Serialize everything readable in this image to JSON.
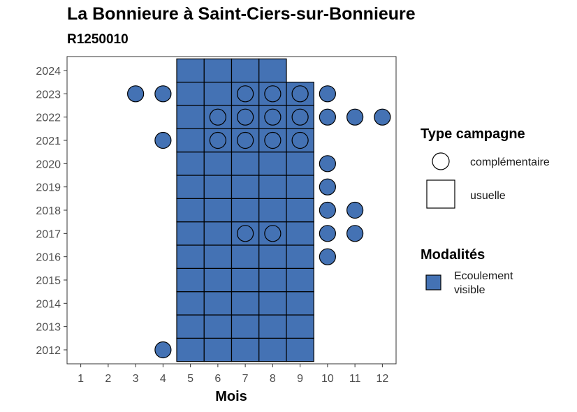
{
  "title": "La Bonnieure à Saint-Ciers-sur-Bonnieure",
  "subtitle": "R1250010",
  "chart_data": {
    "type": "heatmap",
    "xlabel": "Mois",
    "ylabel": "",
    "x_ticks": [
      "1",
      "2",
      "3",
      "4",
      "5",
      "6",
      "7",
      "8",
      "9",
      "10",
      "11",
      "12"
    ],
    "y_ticks": [
      "2012",
      "2013",
      "2014",
      "2015",
      "2016",
      "2017",
      "2018",
      "2019",
      "2020",
      "2021",
      "2022",
      "2023",
      "2024"
    ],
    "xlim": [
      0.5,
      12.5
    ],
    "ylim": [
      2011.4,
      2024.6
    ],
    "grid": false,
    "legend_placement": "right",
    "fill_color": "#4472b4",
    "legends": {
      "type_campagne": {
        "title": "Type campagne",
        "items": [
          {
            "label": "complémentaire",
            "shape": "circle"
          },
          {
            "label": "usuelle",
            "shape": "square"
          }
        ]
      },
      "modalites": {
        "title": "Modalités",
        "items": [
          {
            "label": "Ecoulement visible",
            "color": "#4472b4"
          }
        ]
      }
    },
    "usuelle": [
      [
        2012,
        5
      ],
      [
        2012,
        6
      ],
      [
        2012,
        7
      ],
      [
        2012,
        8
      ],
      [
        2012,
        9
      ],
      [
        2013,
        5
      ],
      [
        2013,
        6
      ],
      [
        2013,
        7
      ],
      [
        2013,
        8
      ],
      [
        2013,
        9
      ],
      [
        2014,
        5
      ],
      [
        2014,
        6
      ],
      [
        2014,
        7
      ],
      [
        2014,
        8
      ],
      [
        2014,
        9
      ],
      [
        2015,
        5
      ],
      [
        2015,
        6
      ],
      [
        2015,
        7
      ],
      [
        2015,
        8
      ],
      [
        2015,
        9
      ],
      [
        2016,
        5
      ],
      [
        2016,
        6
      ],
      [
        2016,
        7
      ],
      [
        2016,
        8
      ],
      [
        2016,
        9
      ],
      [
        2017,
        5
      ],
      [
        2017,
        6
      ],
      [
        2017,
        7
      ],
      [
        2017,
        8
      ],
      [
        2017,
        9
      ],
      [
        2018,
        5
      ],
      [
        2018,
        6
      ],
      [
        2018,
        7
      ],
      [
        2018,
        8
      ],
      [
        2018,
        9
      ],
      [
        2019,
        5
      ],
      [
        2019,
        6
      ],
      [
        2019,
        7
      ],
      [
        2019,
        8
      ],
      [
        2019,
        9
      ],
      [
        2020,
        5
      ],
      [
        2020,
        6
      ],
      [
        2020,
        7
      ],
      [
        2020,
        8
      ],
      [
        2020,
        9
      ],
      [
        2021,
        5
      ],
      [
        2021,
        6
      ],
      [
        2021,
        7
      ],
      [
        2021,
        8
      ],
      [
        2021,
        9
      ],
      [
        2022,
        5
      ],
      [
        2022,
        6
      ],
      [
        2022,
        7
      ],
      [
        2022,
        8
      ],
      [
        2022,
        9
      ],
      [
        2023,
        5
      ],
      [
        2023,
        6
      ],
      [
        2023,
        7
      ],
      [
        2023,
        8
      ],
      [
        2023,
        9
      ],
      [
        2024,
        5
      ],
      [
        2024,
        6
      ],
      [
        2024,
        7
      ],
      [
        2024,
        8
      ]
    ],
    "complementaire": [
      [
        2012,
        4
      ],
      [
        2016,
        10
      ],
      [
        2017,
        7
      ],
      [
        2017,
        8
      ],
      [
        2017,
        10
      ],
      [
        2017,
        11
      ],
      [
        2018,
        10
      ],
      [
        2018,
        11
      ],
      [
        2019,
        10
      ],
      [
        2020,
        10
      ],
      [
        2021,
        4
      ],
      [
        2021,
        6
      ],
      [
        2021,
        7
      ],
      [
        2021,
        8
      ],
      [
        2021,
        9
      ],
      [
        2022,
        6
      ],
      [
        2022,
        7
      ],
      [
        2022,
        8
      ],
      [
        2022,
        9
      ],
      [
        2022,
        10
      ],
      [
        2022,
        11
      ],
      [
        2022,
        12
      ],
      [
        2023,
        3
      ],
      [
        2023,
        4
      ],
      [
        2023,
        7
      ],
      [
        2023,
        8
      ],
      [
        2023,
        9
      ],
      [
        2023,
        10
      ]
    ]
  }
}
